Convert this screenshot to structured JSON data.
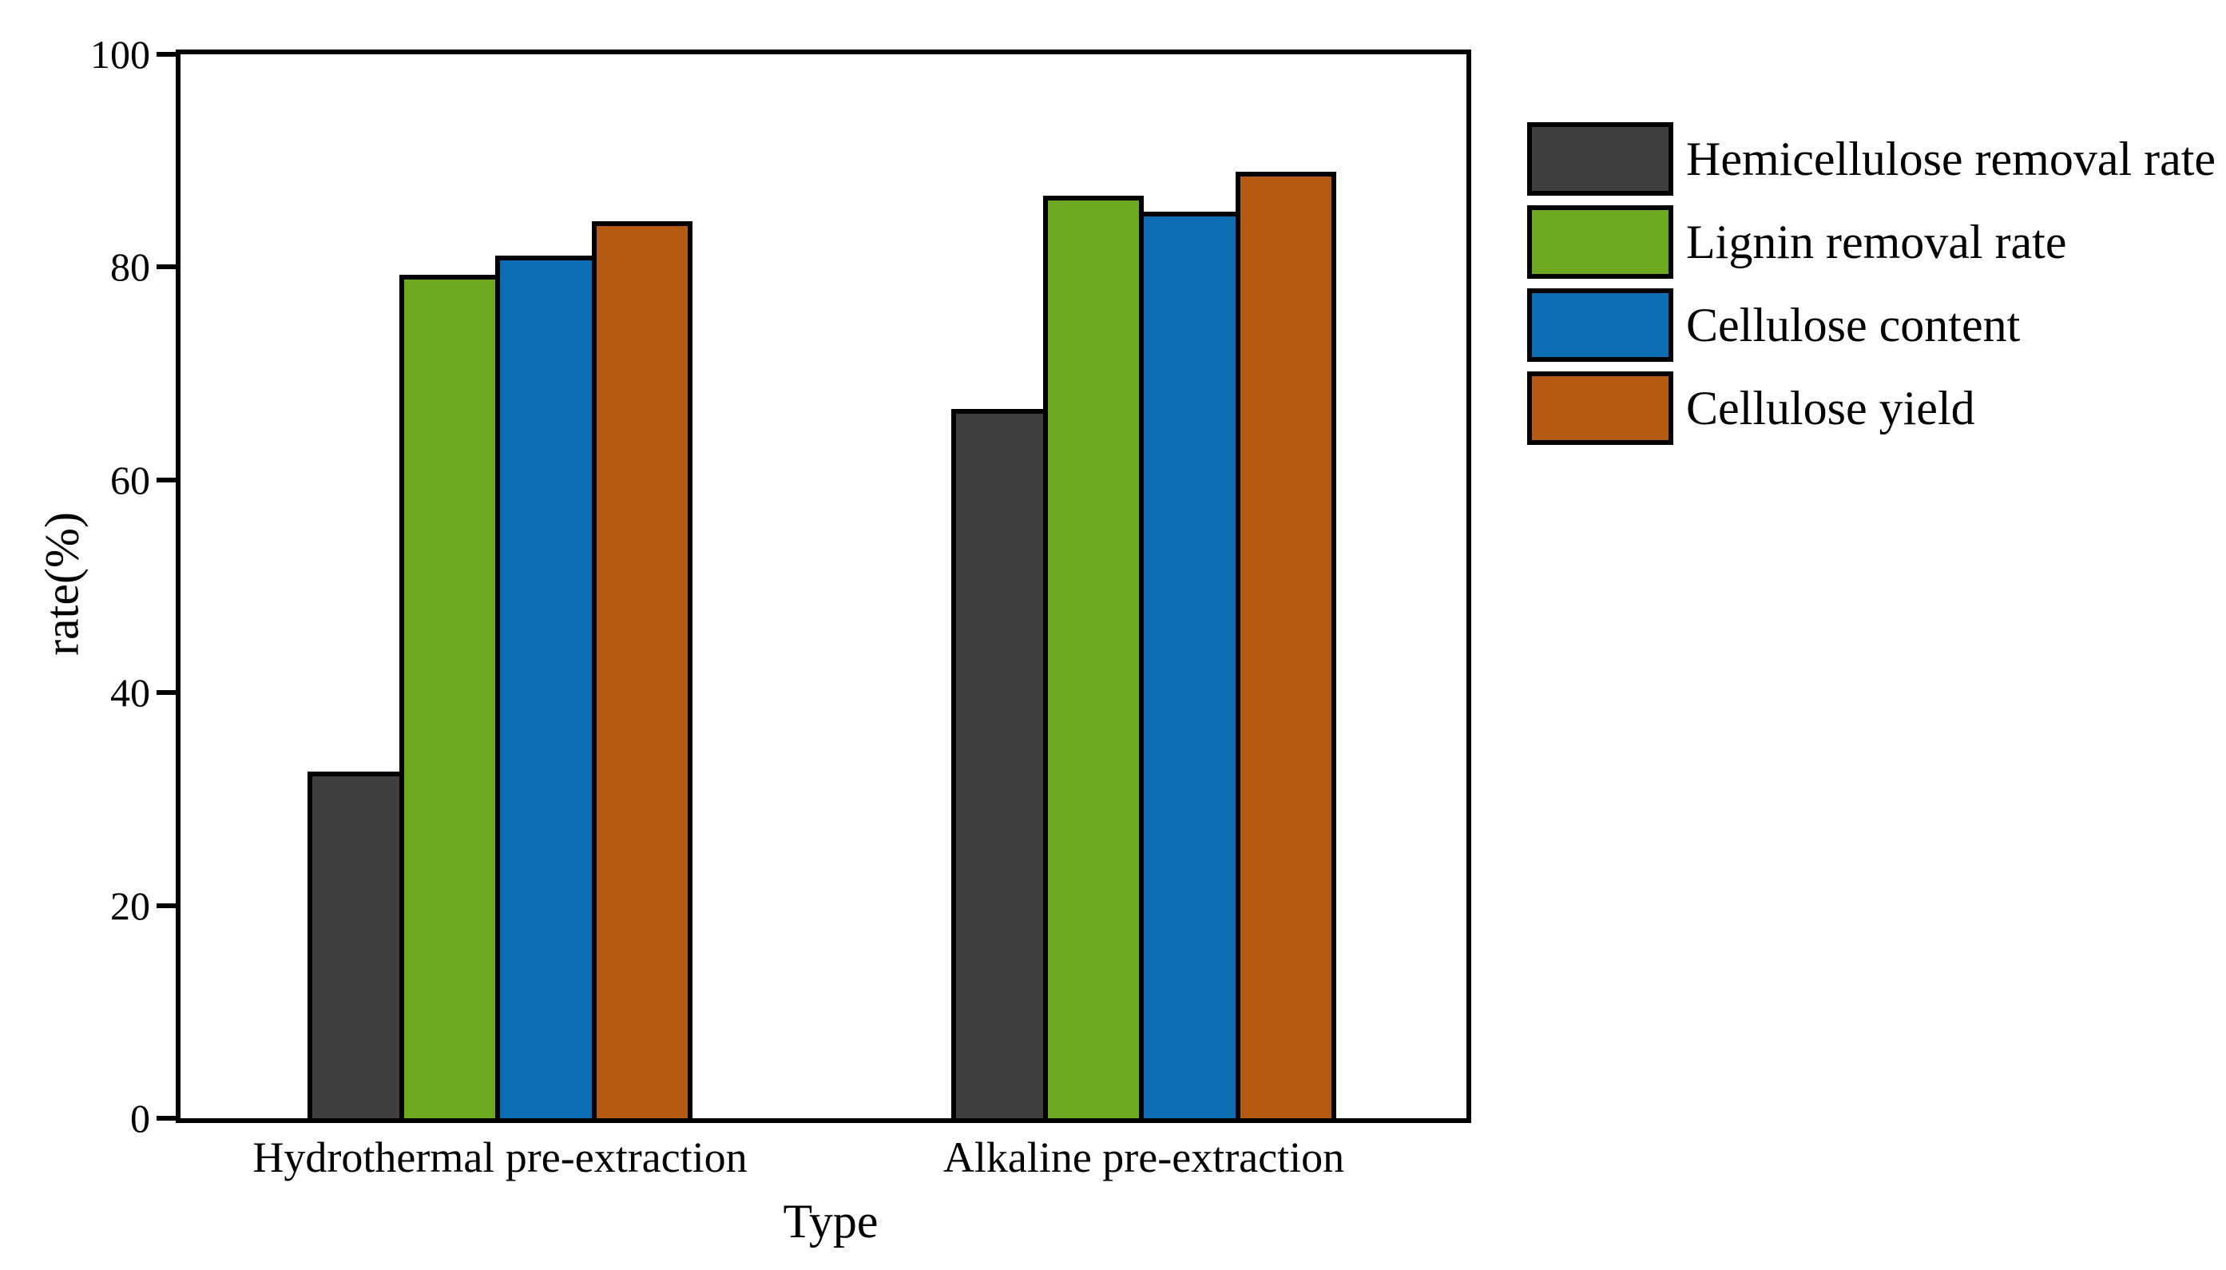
{
  "chart_data": {
    "type": "bar",
    "title": "",
    "xlabel": "Type",
    "ylabel": "rate(%)",
    "ylim": [
      0,
      100
    ],
    "yticks": [
      0,
      20,
      40,
      60,
      80,
      100
    ],
    "grid": false,
    "legend_position": "outside-right",
    "background_color": "#FFFFFF",
    "bar_outline_color": "#000000",
    "categories": [
      "Hydrothermal pre-extraction",
      "Alkaline pre-extraction"
    ],
    "series": [
      {
        "name": "Hemicellulose removal rate",
        "color": "#3F3F3F",
        "values": [
          32.6,
          66.7
        ]
      },
      {
        "name": "Lignin removal rate",
        "color": "#6CA820",
        "values": [
          79.3,
          86.7
        ]
      },
      {
        "name": "Cellulose content",
        "color": "#0C6DB2",
        "values": [
          81.1,
          85.2
        ]
      },
      {
        "name": "Cellulose yield",
        "color": "#B45A12",
        "values": [
          84.3,
          89.0
        ]
      }
    ]
  }
}
